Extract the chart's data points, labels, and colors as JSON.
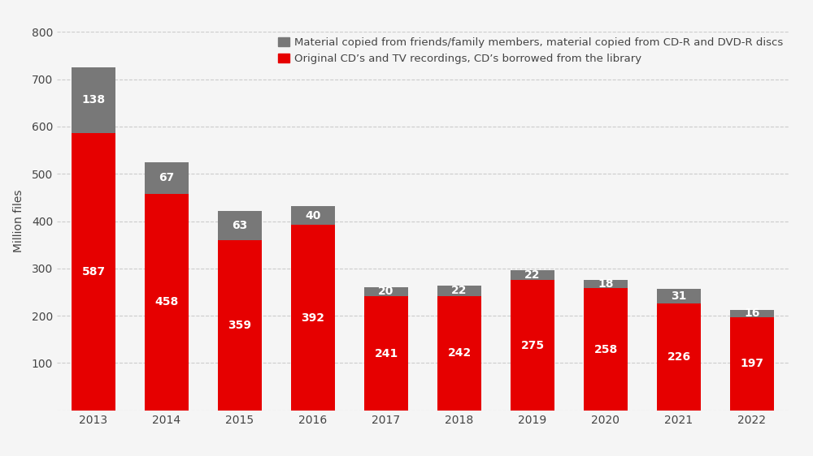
{
  "years": [
    "2013",
    "2014",
    "2015",
    "2016",
    "2017",
    "2018",
    "2019",
    "2020",
    "2021",
    "2022"
  ],
  "red_values": [
    587,
    458,
    359,
    392,
    241,
    242,
    275,
    258,
    226,
    197
  ],
  "gray_values": [
    138,
    67,
    63,
    40,
    20,
    22,
    22,
    18,
    31,
    16
  ],
  "red_color": "#e60000",
  "gray_color": "#787878",
  "ylabel": "Million files",
  "ylim": [
    0,
    800
  ],
  "yticks": [
    0,
    100,
    200,
    300,
    400,
    500,
    600,
    700,
    800
  ],
  "legend_gray": "Material copied from friends/family members, material copied from CD-R and DVD-R discs",
  "legend_red": "Original CD’s and TV recordings, CD’s borrowed from the library",
  "background_color": "#f5f5f5",
  "grid_color": "#cccccc",
  "bar_width": 0.6,
  "label_fontsize": 10,
  "tick_fontsize": 10,
  "annotation_fontsize": 10,
  "legend_fontsize": 9.5
}
